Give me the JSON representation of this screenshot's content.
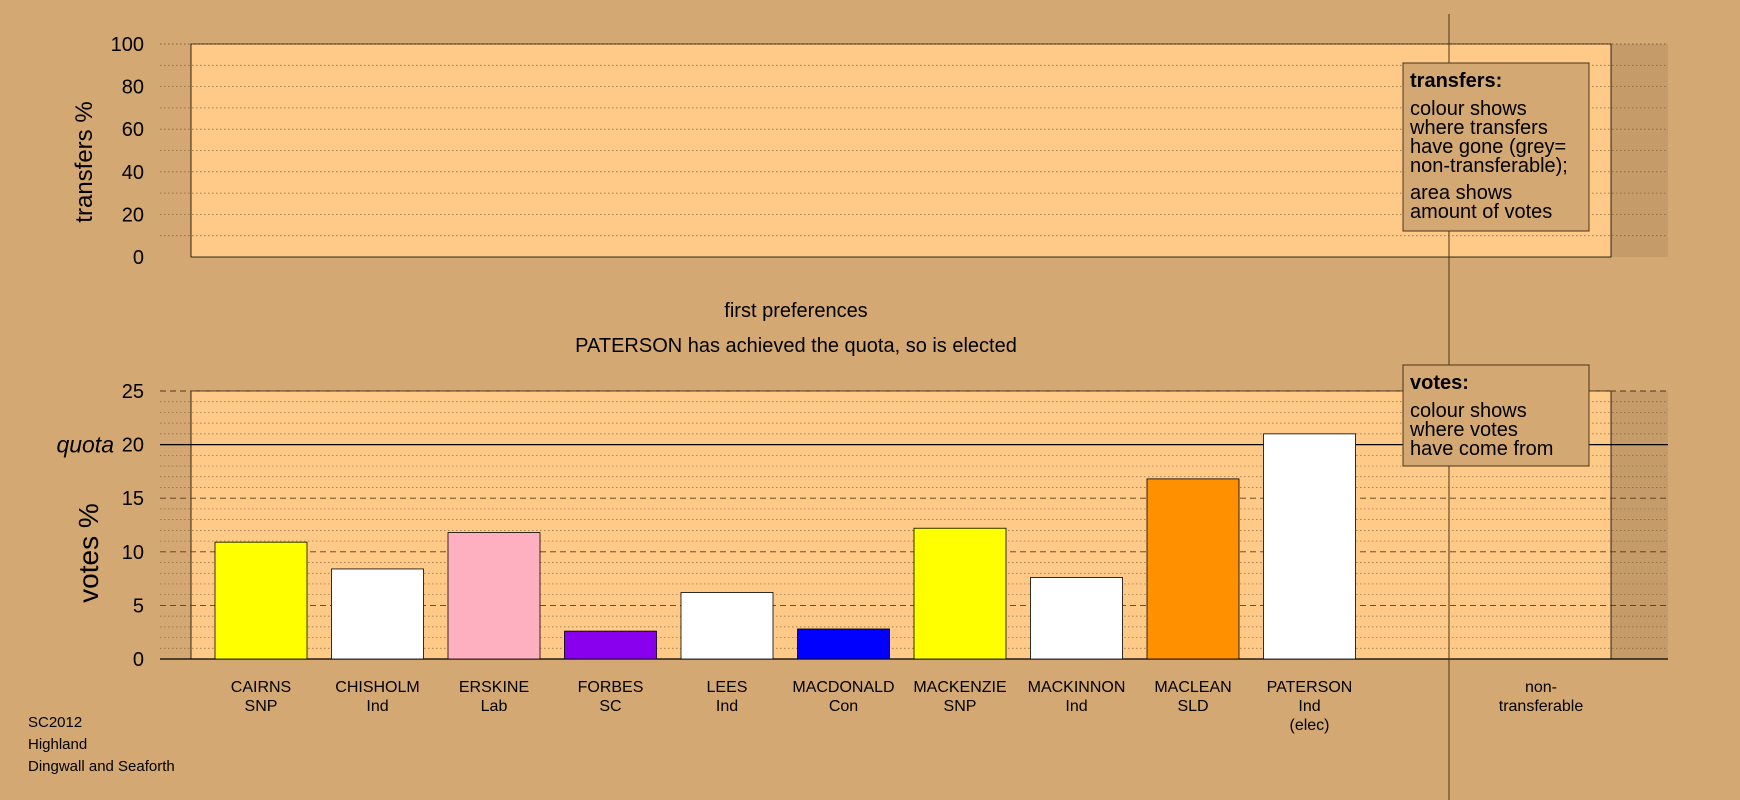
{
  "stage_text": {
    "stage": "first preferences",
    "status": "PATERSON has achieved the quota, so is elected"
  },
  "transfers_note": {
    "heading": "transfers:",
    "lines": [
      "colour shows",
      "where transfers",
      "have gone (grey=",
      "non-transferable);"
    ],
    "lines2": [
      "area shows",
      "amount of votes"
    ]
  },
  "votes_note": {
    "heading": "votes:",
    "lines": [
      "colour shows",
      "where votes",
      "have come from"
    ]
  },
  "footer": {
    "line1": "SC2012",
    "line2": "Highland",
    "line3": "Dingwall and Seaforth"
  },
  "non_transferable_label": [
    "non-",
    "transferable"
  ],
  "chart_data": [
    {
      "type": "bar",
      "ylabel": "transfers %",
      "ylim": [
        0,
        100
      ],
      "yticks": [
        0,
        20,
        40,
        60,
        80,
        100
      ],
      "categories": [],
      "values": []
    },
    {
      "type": "bar",
      "ylabel": "votes %",
      "ylim": [
        0,
        25
      ],
      "yticks": [
        0,
        5,
        10,
        15,
        20,
        25
      ],
      "quota": 20,
      "quota_label": "quota",
      "candidates": [
        {
          "name": "CAIRNS",
          "party": "SNP",
          "value": 10.9,
          "color": "#ffff00"
        },
        {
          "name": "CHISHOLM",
          "party": "Ind",
          "value": 8.4,
          "color": "#ffffff"
        },
        {
          "name": "ERSKINE",
          "party": "Lab",
          "value": 11.8,
          "color": "#ffb0c0"
        },
        {
          "name": "FORBES",
          "party": "SC",
          "value": 2.6,
          "color": "#8800ee"
        },
        {
          "name": "LEES",
          "party": "Ind",
          "value": 6.2,
          "color": "#ffffff"
        },
        {
          "name": "MACDONALD",
          "party": "Con",
          "value": 2.8,
          "color": "#0000ff"
        },
        {
          "name": "MACKENZIE",
          "party": "SNP",
          "value": 12.2,
          "color": "#ffff00"
        },
        {
          "name": "MACKINNON",
          "party": "Ind",
          "value": 7.6,
          "color": "#ffffff"
        },
        {
          "name": "MACLEAN",
          "party": "SLD",
          "value": 16.8,
          "color": "#ff9000"
        },
        {
          "name": "PATERSON",
          "party": "Ind",
          "note": "(elec)",
          "value": 21.0,
          "color": "#ffffff"
        }
      ]
    }
  ]
}
